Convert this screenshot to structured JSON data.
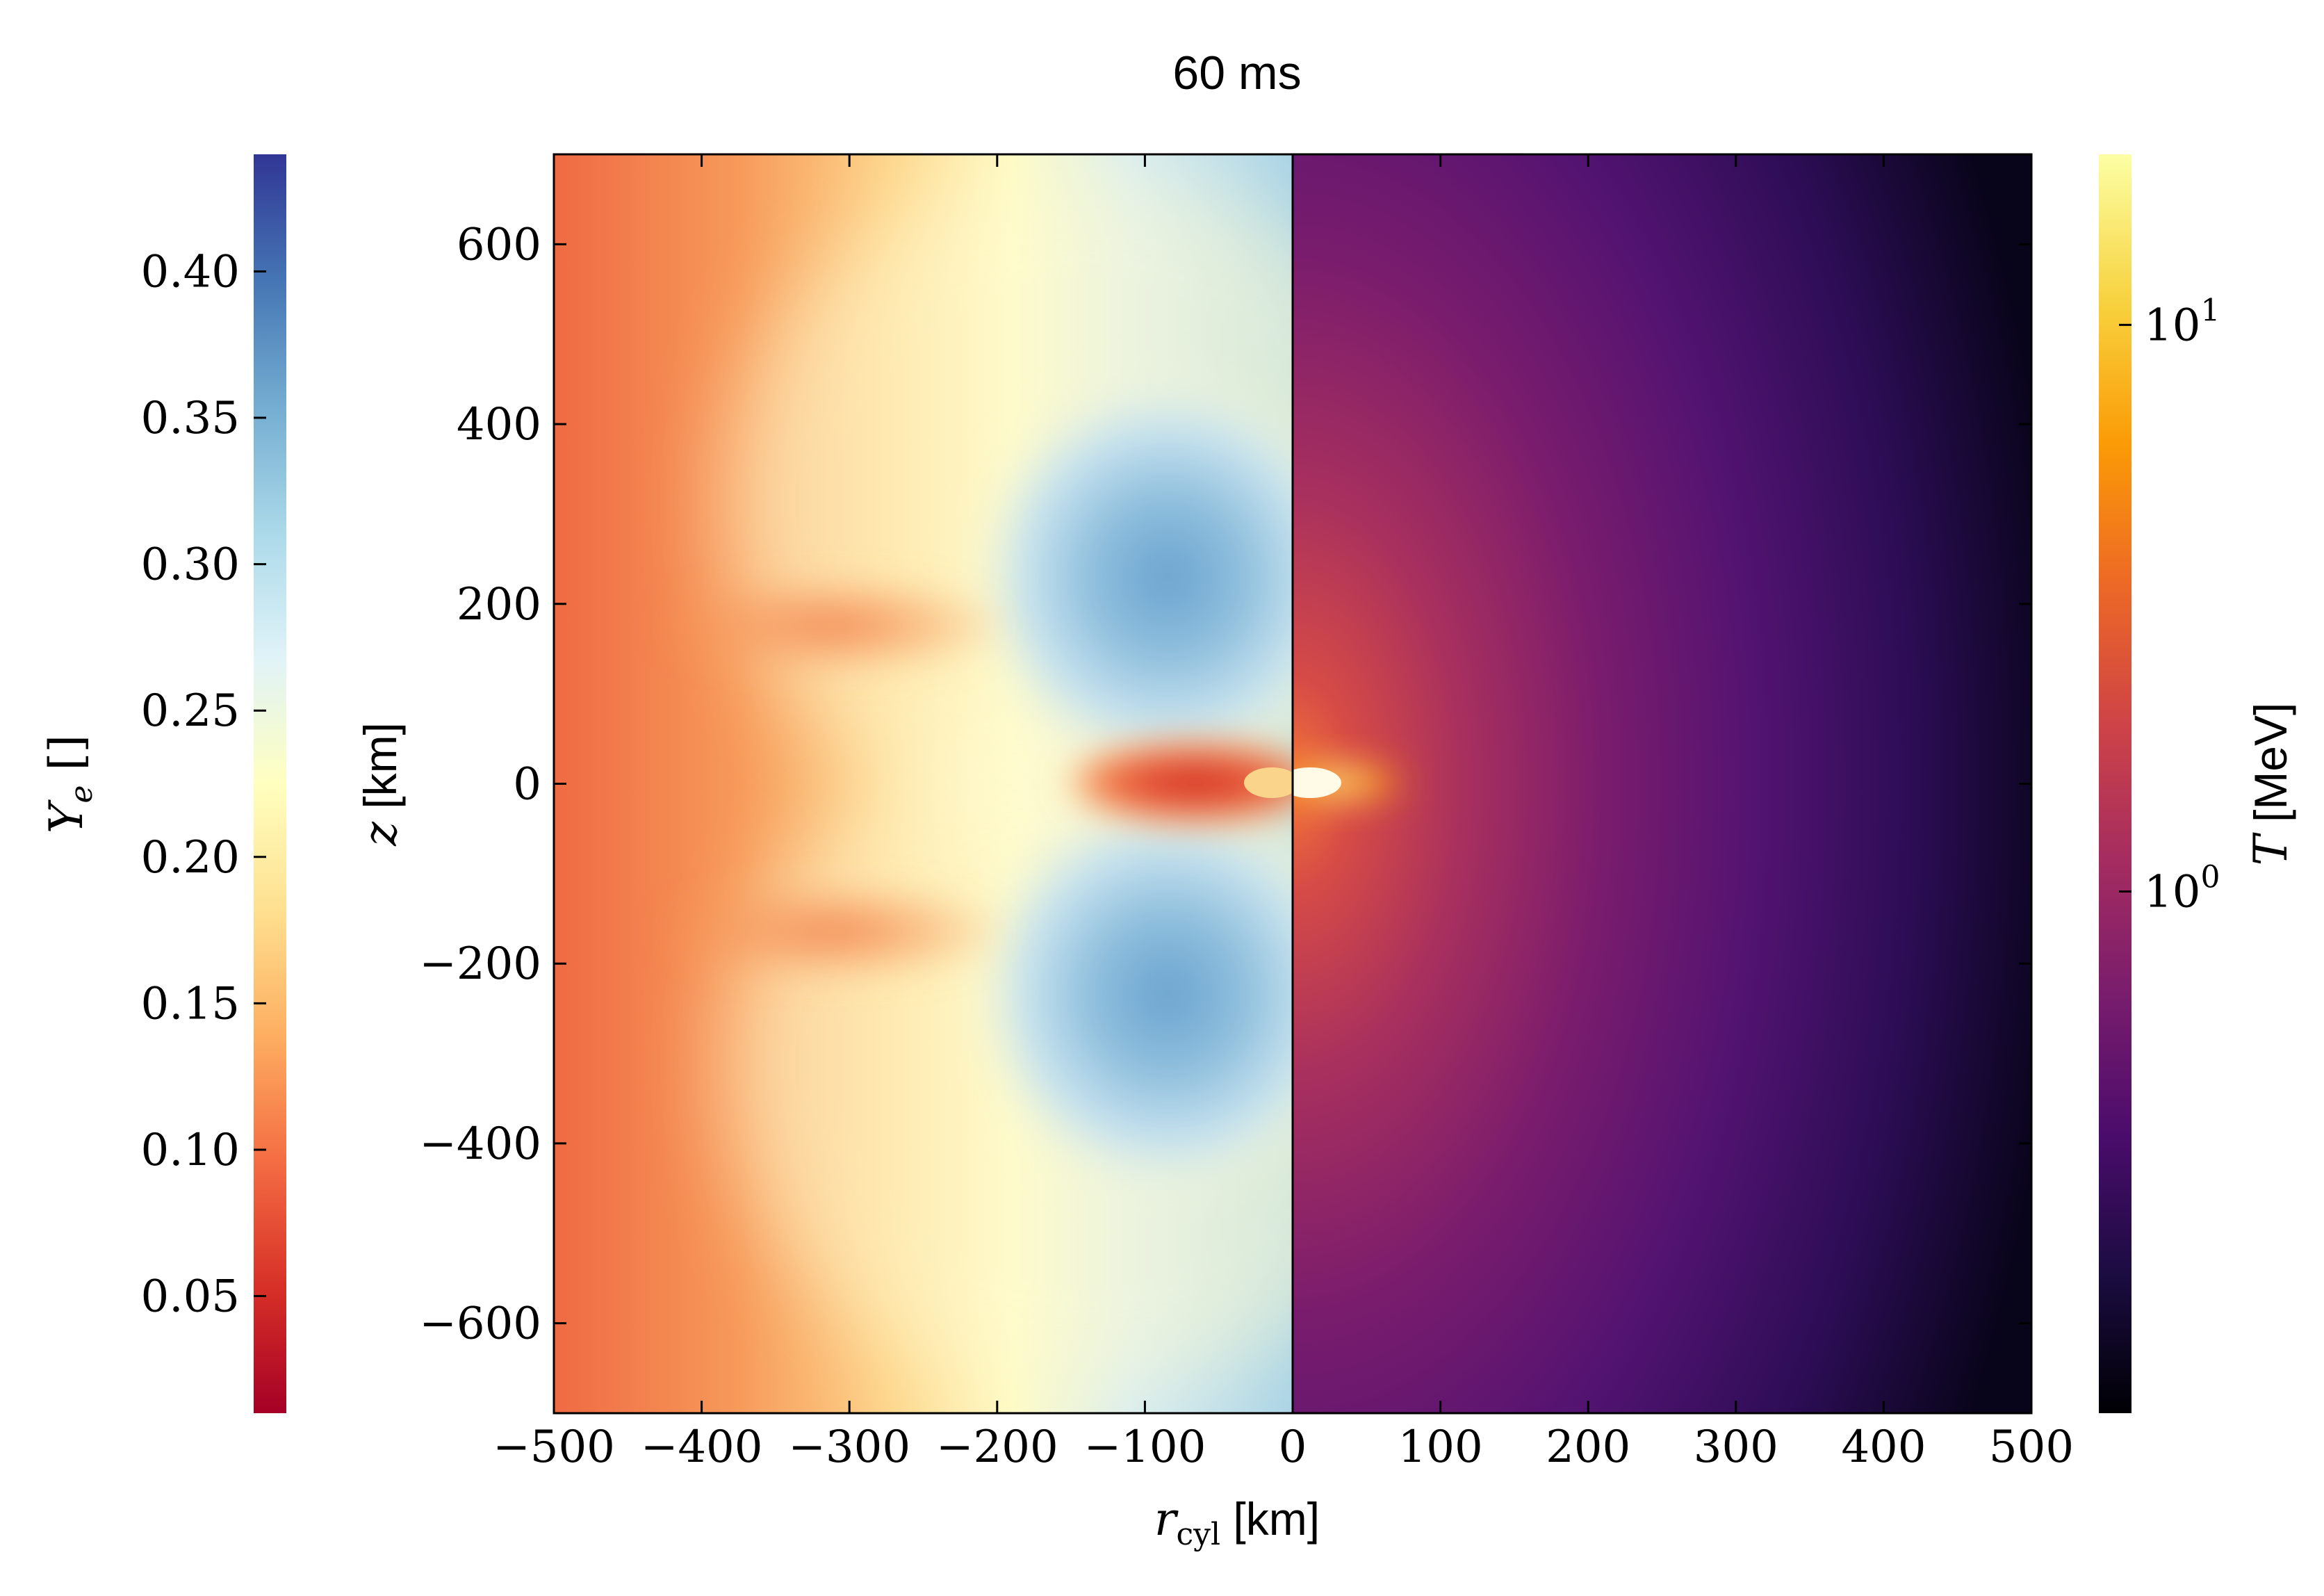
{
  "chart_data": {
    "type": "heatmap",
    "title": "60 ms",
    "xlabel_symbol": "r",
    "xlabel_subscript": "cyl",
    "xlabel_unit": " [km]",
    "ylabel_symbol": "z",
    "ylabel_unit": " [km]",
    "xlim": [
      -500,
      500
    ],
    "ylim": [
      -700,
      700
    ],
    "x_ticks": [
      -500,
      -400,
      -300,
      -200,
      -100,
      0,
      100,
      200,
      300,
      400,
      500
    ],
    "x_tick_labels": [
      "−500",
      "−400",
      "−300",
      "−200",
      "−100",
      "0",
      "100",
      "200",
      "300",
      "400",
      "500"
    ],
    "y_ticks": [
      600,
      400,
      200,
      0,
      -200,
      -400,
      -600
    ],
    "y_tick_labels": [
      "600",
      "400",
      "200",
      "0",
      "−200",
      "−400",
      "−600"
    ],
    "left_half": {
      "quantity": "Ye",
      "colormap": "RdYlBu",
      "colorbar_label_symbol": "Y",
      "colorbar_label_subscript": "e",
      "colorbar_label_unit": " []",
      "colorbar_range": [
        0.01,
        0.44
      ],
      "colorbar_ticks": [
        0.05,
        0.1,
        0.15,
        0.2,
        0.25,
        0.3,
        0.35,
        0.4
      ],
      "colorbar_tick_labels": [
        "0.05",
        "0.10",
        "0.15",
        "0.20",
        "0.25",
        "0.30",
        "0.35",
        "0.40"
      ],
      "colorbar_colors": [
        "#a50026",
        "#d73027",
        "#f46d43",
        "#fdae61",
        "#fee090",
        "#ffffbf",
        "#e0f3f8",
        "#abd9e9",
        "#74add1",
        "#4575b4",
        "#313695"
      ]
    },
    "right_half": {
      "quantity": "T",
      "scale": "log",
      "colormap": "inferno",
      "colorbar_label_symbol": "T",
      "colorbar_label_unit": " [MeV]",
      "colorbar_range": [
        0.12,
        20
      ],
      "colorbar_ticks": [
        1,
        10
      ],
      "colorbar_tick_base": "10",
      "colorbar_tick_exponents": [
        "0",
        "1"
      ],
      "colorbar_colors": [
        "#000004",
        "#1b0c41",
        "#4a0c6b",
        "#781c6d",
        "#a52c60",
        "#cf4446",
        "#ed6925",
        "#fb9b06",
        "#f7d13d",
        "#fcffa4"
      ]
    }
  }
}
